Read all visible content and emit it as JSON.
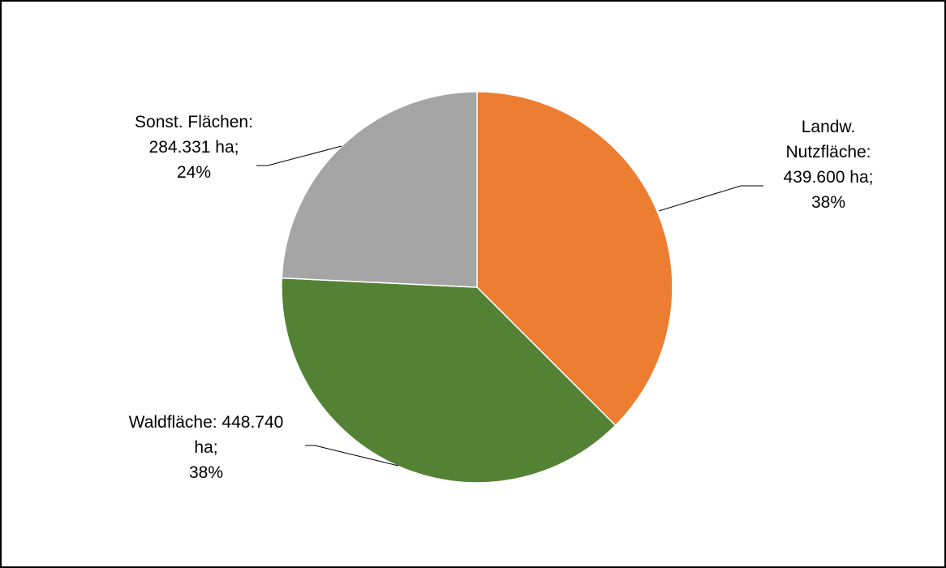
{
  "chart_data": {
    "type": "pie",
    "slices": [
      {
        "category": "Landw. Nutzfläche",
        "value": 439600,
        "percent": 38,
        "color": "#ED7D31",
        "label_lines": [
          "Landw.",
          "Nutzfläche:",
          "439.600 ha;",
          "38%"
        ]
      },
      {
        "category": "Waldfläche",
        "value": 448740,
        "percent": 38,
        "color": "#548235",
        "label_lines": [
          "Waldfläche: 448.740",
          "ha;",
          "38%"
        ]
      },
      {
        "category": "Sonst. Flächen",
        "value": 284331,
        "percent": 24,
        "color": "#A5A5A5",
        "label_lines": [
          "Sonst. Flächen:",
          "284.331 ha;",
          "24%"
        ]
      }
    ]
  }
}
